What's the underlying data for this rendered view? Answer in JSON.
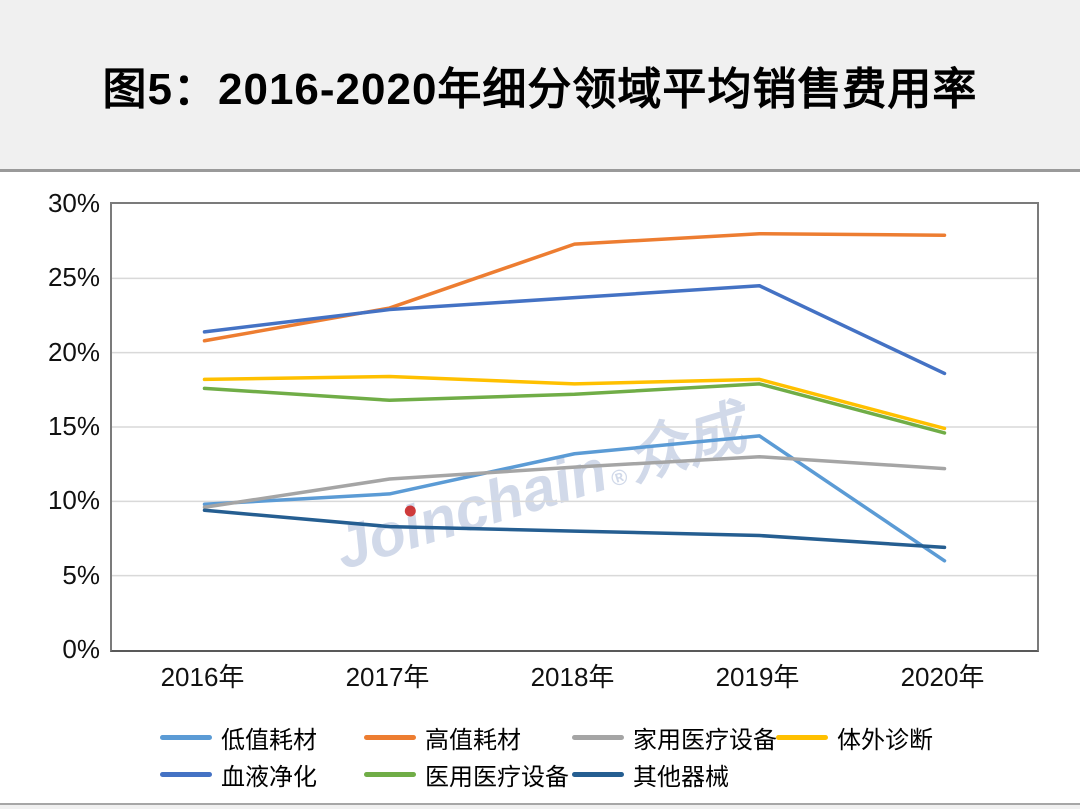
{
  "header": {
    "title": "图5：2016-2020年细分领域平均销售费用率"
  },
  "watermark": {
    "latin": "Joinchain",
    "reg": "®",
    "cjk": "众成"
  },
  "chart_data": {
    "type": "line",
    "title": "图5：2016-2020年细分领域平均销售费用率",
    "categories": [
      "2016年",
      "2017年",
      "2018年",
      "2019年",
      "2020年"
    ],
    "unit": "%",
    "series": [
      {
        "name": "低值耗材",
        "color": "#5B9BD5",
        "values": [
          9.8,
          10.5,
          13.2,
          14.4,
          6.0
        ]
      },
      {
        "name": "高值耗材",
        "color": "#ED7D31",
        "values": [
          20.8,
          23.0,
          27.3,
          28.0,
          27.9
        ]
      },
      {
        "name": "家用医疗设备",
        "color": "#A5A5A5",
        "values": [
          9.6,
          11.5,
          12.3,
          13.0,
          12.2
        ]
      },
      {
        "name": "体外诊断",
        "color": "#FFC000",
        "values": [
          18.2,
          18.4,
          17.9,
          18.2,
          14.9
        ]
      },
      {
        "name": "血液净化",
        "color": "#4472C4",
        "values": [
          21.4,
          22.9,
          23.7,
          24.5,
          18.6
        ]
      },
      {
        "name": "医用医疗设备",
        "color": "#70AD47",
        "values": [
          17.6,
          16.8,
          17.2,
          17.9,
          14.6
        ]
      },
      {
        "name": "其他器械",
        "color": "#255E91",
        "values": [
          9.4,
          8.3,
          8.0,
          7.7,
          6.9
        ]
      }
    ],
    "ylim": [
      0,
      30
    ],
    "ytick_step": 5,
    "ytick_labels": [
      "0%",
      "5%",
      "10%",
      "15%",
      "20%",
      "25%",
      "30%"
    ],
    "grid": "horizontal",
    "gridline_color": "#d9d9d9",
    "legend_position": "bottom",
    "legend_rows": [
      [
        0,
        1,
        2,
        3
      ],
      [
        4,
        5,
        6
      ]
    ]
  }
}
